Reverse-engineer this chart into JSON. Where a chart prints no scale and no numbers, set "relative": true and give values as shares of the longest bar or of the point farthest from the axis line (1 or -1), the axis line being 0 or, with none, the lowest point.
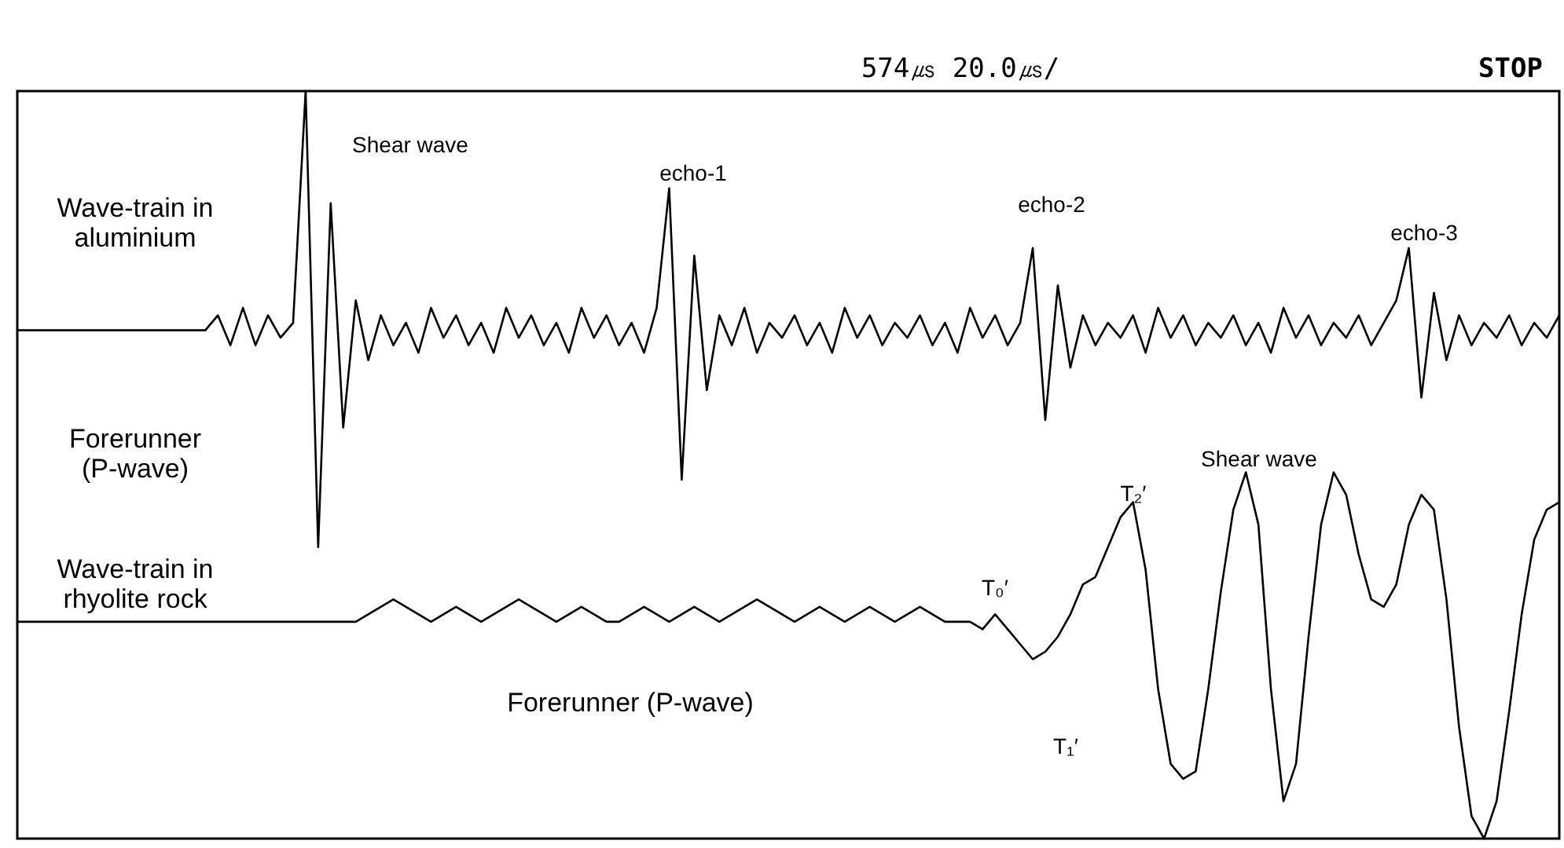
{
  "chart_data": {
    "type": "line",
    "relative": true,
    "categories": [
      null,
      null,
      null,
      null,
      null,
      null,
      null,
      null,
      null,
      null,
      null,
      null,
      null,
      null,
      null,
      null,
      null,
      null,
      null,
      null,
      null,
      null,
      null,
      null,
      null,
      null,
      null,
      null,
      null,
      null,
      null,
      null,
      null,
      null,
      null,
      null,
      null,
      null,
      null,
      null,
      null,
      null,
      null,
      null,
      null,
      null,
      null,
      null,
      null,
      null,
      null,
      null,
      null,
      null,
      null,
      null,
      null,
      null,
      null,
      null,
      null,
      null,
      null,
      null,
      null,
      null,
      null,
      null,
      null,
      null,
      null,
      null,
      null,
      null,
      null,
      null,
      null,
      null,
      null,
      null,
      null,
      null,
      null,
      null,
      null,
      null,
      null,
      null,
      null,
      null,
      null,
      null,
      null,
      null,
      null,
      null,
      null,
      null,
      null,
      null,
      null,
      null,
      null,
      null,
      null,
      null,
      null,
      null,
      null,
      null,
      null,
      null,
      null,
      null,
      null,
      null,
      null,
      null,
      null,
      null,
      null,
      null,
      null,
      null
    ],
    "series": [
      {
        "name": "Wave-train in aluminium",
        "color": "#000000",
        "values": [
          0.68,
          0.68,
          0.68,
          0.68,
          0.68,
          0.68,
          0.68,
          0.68,
          0.68,
          0.68,
          0.68,
          0.68,
          0.68,
          0.68,
          0.68,
          0.68,
          0.7,
          0.66,
          0.71,
          0.66,
          0.7,
          0.67,
          0.69,
          1.0,
          0.39,
          0.85,
          0.55,
          0.72,
          0.64,
          0.7,
          0.66,
          0.69,
          0.65,
          0.71,
          0.67,
          0.7,
          0.66,
          0.69,
          0.65,
          0.71,
          0.67,
          0.7,
          0.66,
          0.69,
          0.65,
          0.71,
          0.67,
          0.7,
          0.66,
          0.69,
          0.65,
          0.71,
          0.87,
          0.48,
          0.78,
          0.6,
          0.7,
          0.66,
          0.71,
          0.65,
          0.69,
          0.67,
          0.7,
          0.66,
          0.69,
          0.65,
          0.71,
          0.67,
          0.7,
          0.66,
          0.69,
          0.67,
          0.7,
          0.66,
          0.69,
          0.65,
          0.71,
          0.67,
          0.7,
          0.66,
          0.69,
          0.79,
          0.56,
          0.74,
          0.63,
          0.7,
          0.66,
          0.69,
          0.67,
          0.7,
          0.65,
          0.71,
          0.67,
          0.7,
          0.66,
          0.69,
          0.67,
          0.7,
          0.66,
          0.69,
          0.65,
          0.71,
          0.67,
          0.7,
          0.66,
          0.69,
          0.67,
          0.7,
          0.66,
          0.69,
          0.72,
          0.79,
          0.59,
          0.73,
          0.64,
          0.7,
          0.66,
          0.69,
          0.67,
          0.7,
          0.66,
          0.69,
          0.67,
          0.7
        ]
      },
      {
        "name": "Wave-train in rhyolite rock",
        "color": "#000000",
        "values": [
          0.29,
          0.29,
          0.29,
          0.29,
          0.29,
          0.29,
          0.29,
          0.29,
          0.29,
          0.29,
          0.29,
          0.29,
          0.29,
          0.29,
          0.29,
          0.29,
          0.29,
          0.29,
          0.29,
          0.29,
          0.29,
          0.29,
          0.29,
          0.29,
          0.29,
          0.29,
          0.29,
          0.29,
          0.3,
          0.31,
          0.32,
          0.31,
          0.3,
          0.29,
          0.3,
          0.31,
          0.3,
          0.29,
          0.3,
          0.31,
          0.32,
          0.31,
          0.3,
          0.29,
          0.3,
          0.31,
          0.3,
          0.29,
          0.29,
          0.3,
          0.31,
          0.3,
          0.29,
          0.3,
          0.31,
          0.3,
          0.29,
          0.3,
          0.31,
          0.32,
          0.31,
          0.3,
          0.29,
          0.3,
          0.31,
          0.3,
          0.29,
          0.3,
          0.31,
          0.3,
          0.29,
          0.3,
          0.31,
          0.3,
          0.29,
          0.29,
          0.29,
          0.28,
          0.3,
          0.28,
          0.26,
          0.24,
          0.25,
          0.27,
          0.3,
          0.34,
          0.35,
          0.39,
          0.43,
          0.45,
          0.36,
          0.2,
          0.1,
          0.08,
          0.09,
          0.2,
          0.33,
          0.44,
          0.49,
          0.42,
          0.2,
          0.05,
          0.1,
          0.27,
          0.42,
          0.49,
          0.46,
          0.38,
          0.32,
          0.31,
          0.34,
          0.42,
          0.46,
          0.44,
          0.32,
          0.15,
          0.03,
          0.0,
          0.05,
          0.17,
          0.3,
          0.4,
          0.44,
          0.45
        ]
      }
    ],
    "annotations": [
      "Shear wave",
      "echo-1",
      "echo-2",
      "echo-3",
      "Forerunner (P-wave)",
      "Shear wave",
      "Forerunner (P-wave)",
      "T₀′",
      "T₁′",
      "T₂′",
      "574㎲ 20.0㎲/",
      "STOP"
    ]
  }
}
